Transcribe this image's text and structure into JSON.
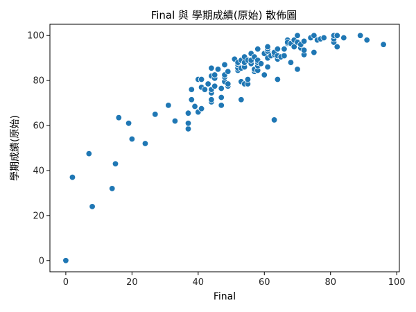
{
  "chart_data": {
    "type": "scatter",
    "title": "Final 與 學期成績(原始) 散佈圖",
    "xlabel": "Final",
    "ylabel": "學期成績(原始)",
    "xlim": [
      -4.8,
      100.8
    ],
    "ylim": [
      -5,
      105
    ],
    "xticks": [
      0,
      20,
      40,
      60,
      80,
      100
    ],
    "yticks": [
      0,
      20,
      40,
      60,
      80,
      100
    ],
    "xtick_labels": [
      "0",
      "20",
      "40",
      "60",
      "80",
      "100"
    ],
    "ytick_labels": [
      "0",
      "20",
      "40",
      "60",
      "80",
      "100"
    ],
    "grid": false,
    "marker_color": "#1f77b4",
    "points": [
      [
        0,
        0
      ],
      [
        2,
        37
      ],
      [
        7,
        47.5
      ],
      [
        8,
        24
      ],
      [
        14,
        32
      ],
      [
        15,
        43
      ],
      [
        16,
        63.5
      ],
      [
        19,
        61
      ],
      [
        20,
        54
      ],
      [
        24,
        52
      ],
      [
        27,
        65
      ],
      [
        31,
        69
      ],
      [
        33,
        62
      ],
      [
        37,
        58.5
      ],
      [
        37,
        61
      ],
      [
        37,
        65.5
      ],
      [
        38,
        71.5
      ],
      [
        38,
        76
      ],
      [
        39,
        68.5
      ],
      [
        40,
        66
      ],
      [
        40,
        80.5
      ],
      [
        41,
        67.5
      ],
      [
        41,
        77
      ],
      [
        41,
        80.5
      ],
      [
        42,
        76
      ],
      [
        43,
        78.5
      ],
      [
        44,
        70.5
      ],
      [
        44,
        71.5
      ],
      [
        44,
        74.5
      ],
      [
        44,
        76
      ],
      [
        44,
        82
      ],
      [
        44,
        85.5
      ],
      [
        45,
        77.5
      ],
      [
        45,
        81
      ],
      [
        45,
        82.5
      ],
      [
        46,
        85
      ],
      [
        47,
        69
      ],
      [
        47,
        72.5
      ],
      [
        47,
        76.5
      ],
      [
        48,
        79.5
      ],
      [
        48,
        81.5
      ],
      [
        48,
        82.5
      ],
      [
        48,
        87
      ],
      [
        49,
        77.5
      ],
      [
        49,
        78.5
      ],
      [
        49,
        84
      ],
      [
        51,
        89.5
      ],
      [
        52,
        84.5
      ],
      [
        52,
        85.5
      ],
      [
        52,
        87
      ],
      [
        52,
        88
      ],
      [
        53,
        71.5
      ],
      [
        53,
        79.5
      ],
      [
        53,
        85.5
      ],
      [
        53,
        89
      ],
      [
        54,
        78.5
      ],
      [
        54,
        86
      ],
      [
        54,
        88
      ],
      [
        54,
        90.5
      ],
      [
        55,
        78.5
      ],
      [
        55,
        80.5
      ],
      [
        55,
        89
      ],
      [
        56,
        87.5
      ],
      [
        56,
        89
      ],
      [
        56,
        92
      ],
      [
        57,
        84
      ],
      [
        57,
        85
      ],
      [
        57,
        90.5
      ],
      [
        58,
        84.5
      ],
      [
        58,
        86.5
      ],
      [
        58,
        88
      ],
      [
        58,
        89
      ],
      [
        58,
        94
      ],
      [
        59,
        87.5
      ],
      [
        60,
        82.5
      ],
      [
        60,
        92
      ],
      [
        61,
        86
      ],
      [
        61,
        90
      ],
      [
        61,
        93
      ],
      [
        61,
        94
      ],
      [
        61,
        95
      ],
      [
        62,
        91
      ],
      [
        63,
        62.5
      ],
      [
        63,
        91.5
      ],
      [
        63,
        92.5
      ],
      [
        64,
        80.5
      ],
      [
        64,
        89.5
      ],
      [
        64,
        91
      ],
      [
        64,
        94
      ],
      [
        65,
        90.5
      ],
      [
        66,
        91
      ],
      [
        66,
        94
      ],
      [
        67,
        96.5
      ],
      [
        67,
        98
      ],
      [
        67,
        97
      ],
      [
        68,
        88
      ],
      [
        68,
        96.5
      ],
      [
        69,
        95
      ],
      [
        69,
        98
      ],
      [
        70,
        85
      ],
      [
        70,
        97
      ],
      [
        70,
        100
      ],
      [
        71,
        94.5
      ],
      [
        71,
        96
      ],
      [
        72,
        91.5
      ],
      [
        72,
        93.5
      ],
      [
        72,
        97.5
      ],
      [
        74,
        99
      ],
      [
        75,
        92.5
      ],
      [
        75,
        100
      ],
      [
        76,
        98
      ],
      [
        77,
        98.5
      ],
      [
        78,
        99
      ],
      [
        81,
        97
      ],
      [
        81,
        98.5
      ],
      [
        81,
        100
      ],
      [
        82,
        95
      ],
      [
        82,
        100
      ],
      [
        84,
        99
      ],
      [
        89,
        100
      ],
      [
        91,
        98
      ],
      [
        96,
        96
      ]
    ]
  }
}
